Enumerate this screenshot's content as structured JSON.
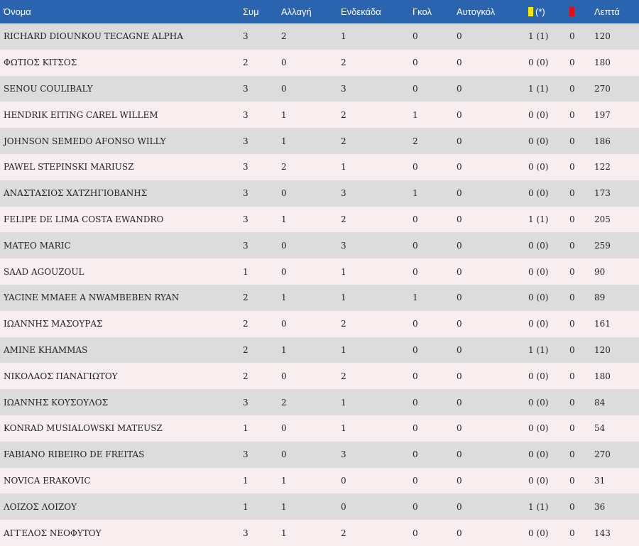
{
  "headers": {
    "name": "Όνομα",
    "apps": "Συμ",
    "sub": "Αλλαγή",
    "starts": "Ενδεκάδα",
    "goals": "Γκολ",
    "own_goals": "Αυτογκόλ",
    "yellow": "(*)",
    "minutes": "Λεπτά"
  },
  "colors": {
    "header_bg": "#2a63ae",
    "yellow_card": "#f5e900",
    "red_card": "#e01010",
    "row_even": "#dcdcdc",
    "row_odd": "#f8eef0"
  },
  "rows": [
    {
      "name": "RICHARD DIOUNKOU TECAGNE ALPHA",
      "apps": "3",
      "sub": "2",
      "starts": "1",
      "goals": "0",
      "own_goals": "0",
      "yellow": "1 (1)",
      "red": "0",
      "minutes": "120"
    },
    {
      "name": "ΦΩΤΙΟΣ ΚΙΤΣΟΣ",
      "apps": "2",
      "sub": "0",
      "starts": "2",
      "goals": "0",
      "own_goals": "0",
      "yellow": "0 (0)",
      "red": "0",
      "minutes": "180"
    },
    {
      "name": "SENOU COULIBALY",
      "apps": "3",
      "sub": "0",
      "starts": "3",
      "goals": "0",
      "own_goals": "0",
      "yellow": "1 (1)",
      "red": "0",
      "minutes": "270"
    },
    {
      "name": "HENDRIK EITING CAREL WILLEM",
      "apps": "3",
      "sub": "1",
      "starts": "2",
      "goals": "1",
      "own_goals": "0",
      "yellow": "0 (0)",
      "red": "0",
      "minutes": "197"
    },
    {
      "name": "JOHNSON SEMEDO AFONSO WILLY",
      "apps": "3",
      "sub": "1",
      "starts": "2",
      "goals": "2",
      "own_goals": "0",
      "yellow": "0 (0)",
      "red": "0",
      "minutes": "186"
    },
    {
      "name": "PAWEL STEPINSKI MARIUSZ",
      "apps": "3",
      "sub": "2",
      "starts": "1",
      "goals": "0",
      "own_goals": "0",
      "yellow": "0 (0)",
      "red": "0",
      "minutes": "122"
    },
    {
      "name": "ΑΝΑΣΤΑΣΙΟΣ ΧΑΤΖΗΓΙΟΒΑΝΗΣ",
      "apps": "3",
      "sub": "0",
      "starts": "3",
      "goals": "1",
      "own_goals": "0",
      "yellow": "0 (0)",
      "red": "0",
      "minutes": "173"
    },
    {
      "name": "FELIPE DE LIMA COSTA EWANDRO",
      "apps": "3",
      "sub": "1",
      "starts": "2",
      "goals": "0",
      "own_goals": "0",
      "yellow": "1 (1)",
      "red": "0",
      "minutes": "205"
    },
    {
      "name": "MATEO MARIC",
      "apps": "3",
      "sub": "0",
      "starts": "3",
      "goals": "0",
      "own_goals": "0",
      "yellow": "0 (0)",
      "red": "0",
      "minutes": "259"
    },
    {
      "name": "SAAD AGOUZOUL",
      "apps": "1",
      "sub": "0",
      "starts": "1",
      "goals": "0",
      "own_goals": "0",
      "yellow": "0 (0)",
      "red": "0",
      "minutes": "90"
    },
    {
      "name": "YACINE MMAEE A NWAMBEBEN RYAN",
      "apps": "2",
      "sub": "1",
      "starts": "1",
      "goals": "1",
      "own_goals": "0",
      "yellow": "0 (0)",
      "red": "0",
      "minutes": "89"
    },
    {
      "name": "ΙΩΑΝΝΗΣ ΜΑΣΟΥΡΑΣ",
      "apps": "2",
      "sub": "0",
      "starts": "2",
      "goals": "0",
      "own_goals": "0",
      "yellow": "0 (0)",
      "red": "0",
      "minutes": "161"
    },
    {
      "name": "AMINE KHAMMAS",
      "apps": "2",
      "sub": "1",
      "starts": "1",
      "goals": "0",
      "own_goals": "0",
      "yellow": "1 (1)",
      "red": "0",
      "minutes": "120"
    },
    {
      "name": "ΝΙΚΟΛΑΟΣ ΠΑΝΑΓΙΩΤΟΥ",
      "apps": "2",
      "sub": "0",
      "starts": "2",
      "goals": "0",
      "own_goals": "0",
      "yellow": "0 (0)",
      "red": "0",
      "minutes": "180"
    },
    {
      "name": "ΙΩΑΝΝΗΣ ΚΟΥΣΟΥΛΟΣ",
      "apps": "3",
      "sub": "2",
      "starts": "1",
      "goals": "0",
      "own_goals": "0",
      "yellow": "0 (0)",
      "red": "0",
      "minutes": "84"
    },
    {
      "name": "KONRAD MUSIALOWSKI MATEUSZ",
      "apps": "1",
      "sub": "0",
      "starts": "1",
      "goals": "0",
      "own_goals": "0",
      "yellow": "0 (0)",
      "red": "0",
      "minutes": "54"
    },
    {
      "name": "FABIANO RIBEIRO DE FREITAS",
      "apps": "3",
      "sub": "0",
      "starts": "3",
      "goals": "0",
      "own_goals": "0",
      "yellow": "0 (0)",
      "red": "0",
      "minutes": "270"
    },
    {
      "name": "NOVICA ERAKOVIC",
      "apps": "1",
      "sub": "1",
      "starts": "0",
      "goals": "0",
      "own_goals": "0",
      "yellow": "0 (0)",
      "red": "0",
      "minutes": "31"
    },
    {
      "name": "ΛΟΙΖΟΣ ΛΟΙΖΟΥ",
      "apps": "1",
      "sub": "1",
      "starts": "0",
      "goals": "0",
      "own_goals": "0",
      "yellow": "1 (1)",
      "red": "0",
      "minutes": "36"
    },
    {
      "name": "ΑΓΓΕΛΟΣ ΝΕΟΦΥΤΟΥ",
      "apps": "3",
      "sub": "1",
      "starts": "2",
      "goals": "0",
      "own_goals": "0",
      "yellow": "0 (0)",
      "red": "0",
      "minutes": "143"
    }
  ]
}
